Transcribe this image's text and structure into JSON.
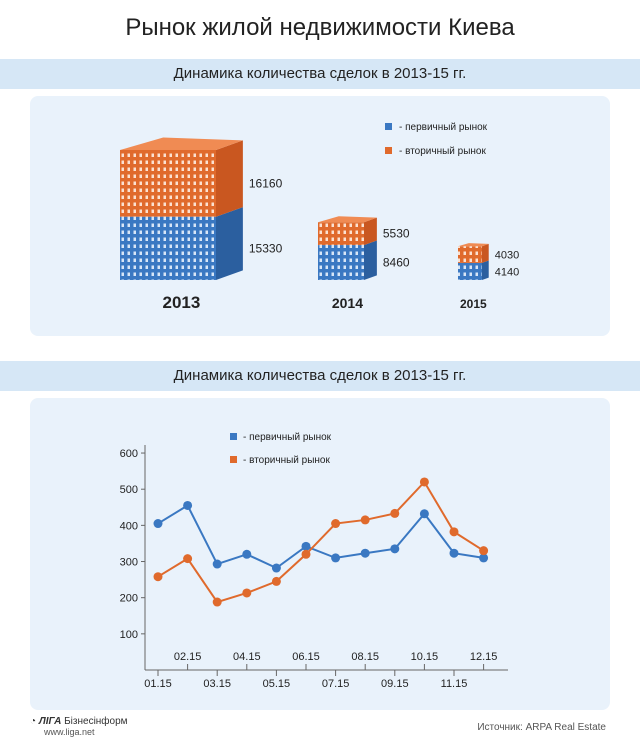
{
  "title": "Рынок жилой недвижимости Киева",
  "section1": {
    "subtitle": "Динамика количества сделок в 2013-15 гг."
  },
  "section2": {
    "subtitle": "Динамика количества сделок в 2013-15 гг."
  },
  "colors": {
    "primary": "#3a78c2",
    "secondary": "#e06a2c",
    "band": "#d6e7f6",
    "panel": "#e9f2fb"
  },
  "chart_data": [
    {
      "type": "bar",
      "categories": [
        "2013",
        "2014",
        "2015"
      ],
      "series": [
        {
          "name": "- первичный рынок",
          "values": [
            15330,
            8460,
            4140
          ]
        },
        {
          "name": "- вторичный рынок",
          "values": [
            16160,
            5530,
            4030
          ]
        }
      ],
      "stacked": true,
      "legend": "top-right"
    },
    {
      "type": "line",
      "categories": [
        "01.15",
        "02.15",
        "03.15",
        "04.15",
        "05.15",
        "06.15",
        "07.15",
        "08.15",
        "09.15",
        "10.15",
        "11.15",
        "12.15"
      ],
      "series": [
        {
          "name": "- первичный рынок",
          "values": [
            405,
            455,
            293,
            320,
            282,
            342,
            310,
            323,
            335,
            432,
            323,
            310
          ]
        },
        {
          "name": "- вторичный рынок",
          "values": [
            258,
            308,
            188,
            213,
            245,
            320,
            405,
            415,
            433,
            520,
            382,
            330
          ]
        }
      ],
      "yticks": [
        "100",
        "200",
        "300",
        "400",
        "500",
        "600"
      ],
      "ylim": [
        0,
        600
      ],
      "grid": false,
      "legend": "top-left"
    }
  ],
  "footer": {
    "brand": "ЛІГА",
    "brand_suffix": "Бізнесінформ",
    "site": "www.liga.net",
    "source": "Источник: ARPA Real Estate"
  }
}
